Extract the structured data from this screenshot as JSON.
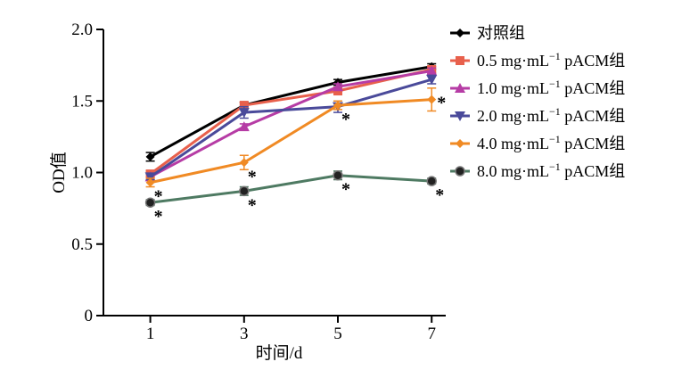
{
  "chart_data": {
    "type": "line",
    "xlabel": "时间/d",
    "ylabel": "OD值",
    "x": [
      1,
      3,
      5,
      7
    ],
    "xlim": [
      0,
      7.3
    ],
    "ylim": [
      0,
      2.0
    ],
    "yticks": [
      0,
      0.5,
      1.0,
      1.5,
      2.0
    ],
    "ytick_labels": [
      "0",
      "0.5",
      "1.0",
      "1.5",
      "2.0"
    ],
    "xtick_labels": [
      "1",
      "3",
      "5",
      "7"
    ],
    "grid": false,
    "legend_position": "right",
    "significance_mark": "*",
    "series": [
      {
        "name": "对照组",
        "name_main": "对照组",
        "name_sup": "",
        "name_tail": "",
        "color": "#000000",
        "marker": "diamond",
        "values": [
          1.11,
          1.47,
          1.63,
          1.74
        ],
        "errors": [
          0.03,
          0.02,
          0.02,
          0.02
        ],
        "significant": [
          false,
          false,
          false,
          false
        ]
      },
      {
        "name": "0.5 mg·mL⁻¹ pACM组",
        "name_main": "0.5 mg·mL",
        "name_sup": "−1",
        "name_tail": " pACM组",
        "color": "#e8604c",
        "marker": "square",
        "values": [
          0.99,
          1.47,
          1.57,
          1.72
        ],
        "errors": [
          0.02,
          0.02,
          0.02,
          0.02
        ],
        "significant": [
          false,
          false,
          false,
          false
        ]
      },
      {
        "name": "1.0 mg·mL⁻¹ pACM组",
        "name_main": "1.0 mg·mL",
        "name_sup": "−1",
        "name_tail": " pACM组",
        "color": "#b63ca5",
        "marker": "triangle-up",
        "values": [
          0.97,
          1.32,
          1.6,
          1.71
        ],
        "errors": [
          0.02,
          0.02,
          0.02,
          0.02
        ],
        "significant": [
          false,
          false,
          false,
          false
        ]
      },
      {
        "name": "2.0 mg·mL⁻¹ pACM组",
        "name_main": "2.0 mg·mL",
        "name_sup": "−1",
        "name_tail": " pACM组",
        "color": "#4a4a9a",
        "marker": "triangle-down",
        "values": [
          0.97,
          1.42,
          1.46,
          1.65
        ],
        "errors": [
          0.02,
          0.04,
          0.04,
          0.03
        ],
        "significant": [
          false,
          false,
          false,
          false
        ]
      },
      {
        "name": "4.0 mg·mL⁻¹ pACM组",
        "name_main": "4.0 mg·mL",
        "name_sup": "−1",
        "name_tail": " pACM组",
        "color": "#f08a24",
        "marker": "diamond",
        "values": [
          0.93,
          1.07,
          1.47,
          1.51
        ],
        "errors": [
          0.03,
          0.05,
          0.03,
          0.08
        ],
        "significant": [
          true,
          true,
          true,
          true
        ]
      },
      {
        "name": "8.0 mg·mL⁻¹ pACM组",
        "name_main": "8.0 mg·mL",
        "name_sup": "−1",
        "name_tail": " pACM组",
        "color": "#4e7a62",
        "marker": "circle",
        "values": [
          0.79,
          0.87,
          0.98,
          0.94
        ],
        "errors": [
          0.02,
          0.03,
          0.03,
          0.02
        ],
        "significant": [
          true,
          true,
          true,
          true
        ]
      }
    ]
  }
}
